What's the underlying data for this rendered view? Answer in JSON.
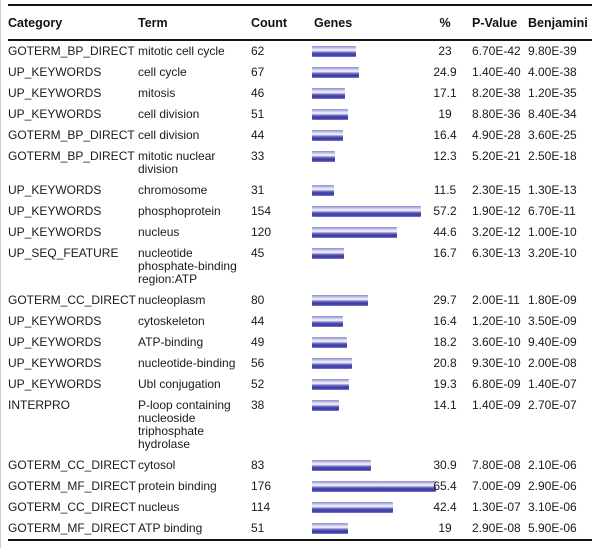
{
  "chart_data": {
    "type": "table",
    "columns": [
      "Category",
      "Term",
      "Count",
      "Genes",
      "%",
      "P-Value",
      "Benjamini"
    ],
    "bar_column": "Genes",
    "bar_encodes": "% of genes",
    "bar_color_dark": "#3a3aa4",
    "bar_color_light": "#e2e2f6",
    "bar_values_percent": [
      23,
      24.9,
      17.1,
      19,
      16.4,
      12.3,
      11.5,
      57.2,
      44.6,
      16.7,
      29.7,
      16.4,
      18.2,
      20.8,
      19.3,
      14.1,
      30.9,
      65.4,
      42.4,
      19
    ],
    "rows": [
      {
        "category": "GOTERM_BP_DIRECT",
        "term": "mitotic cell cycle",
        "count": "62",
        "pct": "23",
        "pvalue": "6.70E-42",
        "benjamini": "9.80E-39"
      },
      {
        "category": "UP_KEYWORDS",
        "term": "cell cycle",
        "count": "67",
        "pct": "24.9",
        "pvalue": "1.40E-40",
        "benjamini": "4.00E-38"
      },
      {
        "category": "UP_KEYWORDS",
        "term": "mitosis",
        "count": "46",
        "pct": "17.1",
        "pvalue": "8.20E-38",
        "benjamini": "1.20E-35"
      },
      {
        "category": "UP_KEYWORDS",
        "term": "cell division",
        "count": "51",
        "pct": "19",
        "pvalue": "8.80E-36",
        "benjamini": "8.40E-34"
      },
      {
        "category": "GOTERM_BP_DIRECT",
        "term": "cell division",
        "count": "44",
        "pct": "16.4",
        "pvalue": "4.90E-28",
        "benjamini": "3.60E-25"
      },
      {
        "category": "GOTERM_BP_DIRECT",
        "term": "mitotic nuclear division",
        "count": "33",
        "pct": "12.3",
        "pvalue": "5.20E-21",
        "benjamini": "2.50E-18"
      },
      {
        "category": "UP_KEYWORDS",
        "term": "chromosome",
        "count": "31",
        "pct": "11.5",
        "pvalue": "2.30E-15",
        "benjamini": "1.30E-13"
      },
      {
        "category": "UP_KEYWORDS",
        "term": "phosphoprotein",
        "count": "154",
        "pct": "57.2",
        "pvalue": "1.90E-12",
        "benjamini": "6.70E-11"
      },
      {
        "category": "UP_KEYWORDS",
        "term": "nucleus",
        "count": "120",
        "pct": "44.6",
        "pvalue": "3.20E-12",
        "benjamini": "1.00E-10"
      },
      {
        "category": "UP_SEQ_FEATURE",
        "term": "nucleotide phosphate-binding region:ATP",
        "count": "45",
        "pct": "16.7",
        "pvalue": "6.30E-13",
        "benjamini": "3.20E-10"
      },
      {
        "category": "GOTERM_CC_DIRECT",
        "term": "nucleoplasm",
        "count": "80",
        "pct": "29.7",
        "pvalue": "2.00E-11",
        "benjamini": "1.80E-09"
      },
      {
        "category": "UP_KEYWORDS",
        "term": "cytoskeleton",
        "count": "44",
        "pct": "16.4",
        "pvalue": "1.20E-10",
        "benjamini": "3.50E-09"
      },
      {
        "category": "UP_KEYWORDS",
        "term": "ATP-binding",
        "count": "49",
        "pct": "18.2",
        "pvalue": "3.60E-10",
        "benjamini": "9.40E-09"
      },
      {
        "category": "UP_KEYWORDS",
        "term": "nucleotide-binding",
        "count": "56",
        "pct": "20.8",
        "pvalue": "9.30E-10",
        "benjamini": "2.00E-08"
      },
      {
        "category": "UP_KEYWORDS",
        "term": "Ubl conjugation",
        "count": "52",
        "pct": "19.3",
        "pvalue": "6.80E-09",
        "benjamini": "1.40E-07"
      },
      {
        "category": "INTERPRO",
        "term": "P-loop containing nucleoside triphosphate hydrolase",
        "count": "38",
        "pct": "14.1",
        "pvalue": "1.40E-09",
        "benjamini": "2.70E-07"
      },
      {
        "category": "GOTERM_CC_DIRECT",
        "term": "cytosol",
        "count": "83",
        "pct": "30.9",
        "pvalue": "7.80E-08",
        "benjamini": "2.10E-06"
      },
      {
        "category": "GOTERM_MF_DIRECT",
        "term": "protein binding",
        "count": "176",
        "pct": "65.4",
        "pvalue": "7.00E-09",
        "benjamini": "2.90E-06"
      },
      {
        "category": "GOTERM_CC_DIRECT",
        "term": "nucleus",
        "count": "114",
        "pct": "42.4",
        "pvalue": "1.30E-07",
        "benjamini": "3.10E-06"
      },
      {
        "category": "GOTERM_MF_DIRECT",
        "term": "ATP binding",
        "count": "51",
        "pct": "19",
        "pvalue": "2.90E-08",
        "benjamini": "5.90E-06"
      }
    ]
  }
}
